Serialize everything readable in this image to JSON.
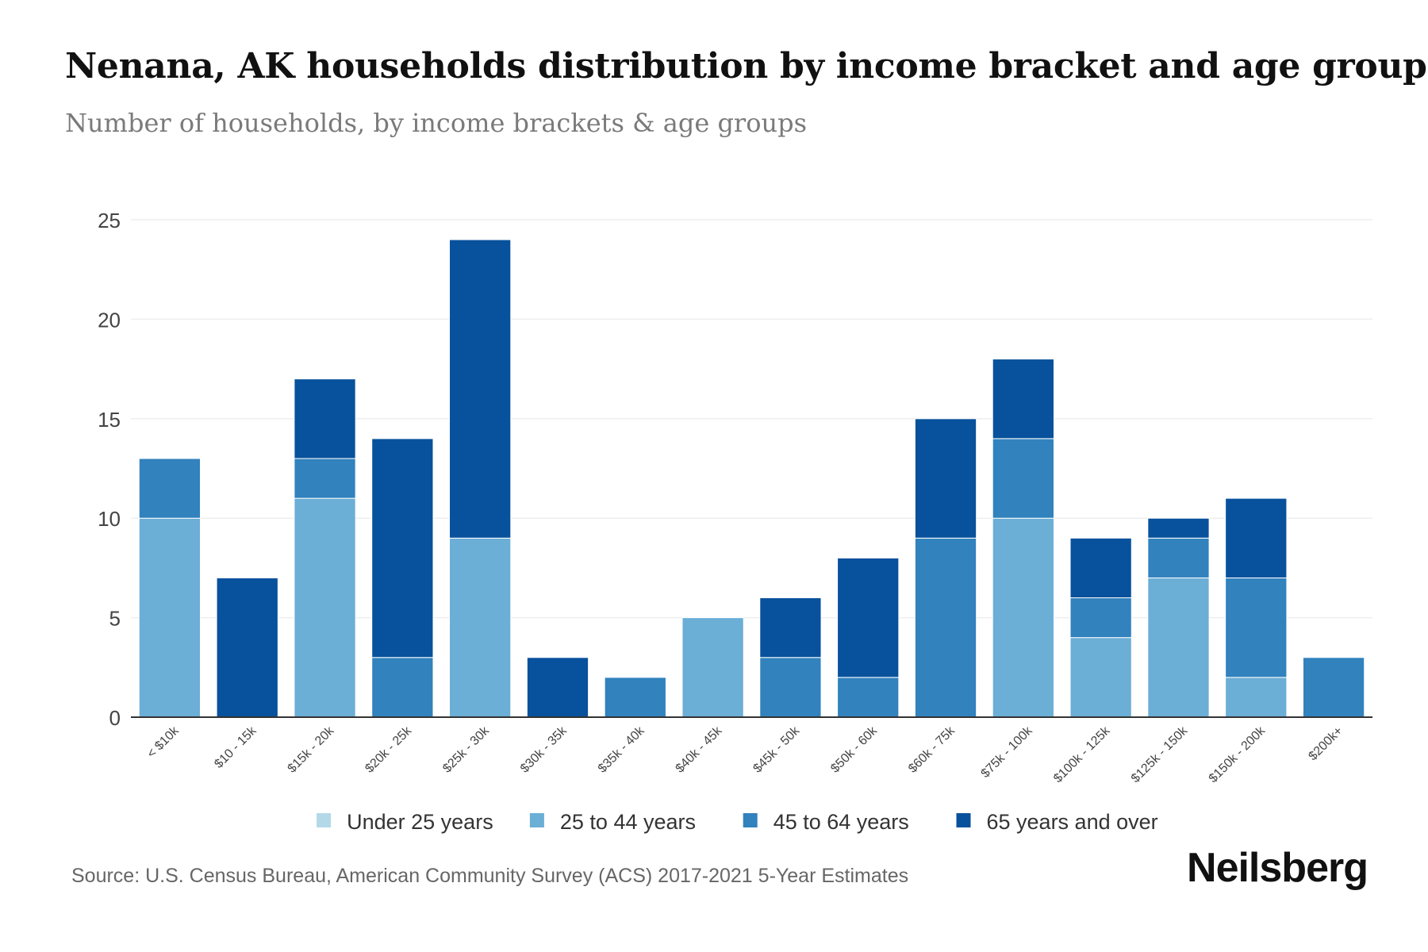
{
  "header": {
    "title": "Nenana, AK households distribution by income bracket and age group",
    "subtitle": "Number of households, by income brackets & age groups"
  },
  "footer": {
    "source": "Source: U.S. Census Bureau, American Community Survey (ACS) 2017-2021 5-Year Estimates",
    "brand": "Neilsberg"
  },
  "colors": {
    "under_25": "#b3d8e8",
    "25_to_44": "#6baed6",
    "45_to_64": "#3182bd",
    "65_plus": "#08519c",
    "grid": "#eeeeee",
    "axis": "#333333"
  },
  "chart_data": {
    "type": "bar",
    "stacked": true,
    "title": "Nenana, AK households distribution by income bracket and age group",
    "subtitle": "Number of households, by income brackets & age groups",
    "xlabel": "",
    "ylabel": "",
    "ylim": [
      0,
      25
    ],
    "yticks": [
      0,
      5,
      10,
      15,
      20,
      25
    ],
    "grid": true,
    "legend_position": "bottom",
    "categories": [
      "< $10k",
      "$10 - 15k",
      "$15k - 20k",
      "$20k - 25k",
      "$25k - 30k",
      "$30k - 35k",
      "$35k - 40k",
      "$40k - 45k",
      "$45k - 50k",
      "$50k - 60k",
      "$60k - 75k",
      "$75k - 100k",
      "$100k - 125k",
      "$125k - 150k",
      "$150k - 200k",
      "$200k+"
    ],
    "series": [
      {
        "name": "Under 25 years",
        "color": "#b3d8e8",
        "values": [
          0,
          0,
          0,
          0,
          0,
          0,
          0,
          0,
          0,
          0,
          0,
          0,
          0,
          0,
          0,
          0
        ]
      },
      {
        "name": "25 to 44 years",
        "color": "#6baed6",
        "values": [
          10,
          0,
          11,
          0,
          9,
          0,
          0,
          5,
          0,
          0,
          0,
          10,
          4,
          7,
          2,
          0
        ]
      },
      {
        "name": "45 to 64 years",
        "color": "#3182bd",
        "values": [
          3,
          0,
          2,
          3,
          0,
          0,
          2,
          0,
          3,
          2,
          9,
          4,
          2,
          2,
          5,
          3
        ]
      },
      {
        "name": "65 years and over",
        "color": "#08519c",
        "values": [
          0,
          7,
          4,
          11,
          15,
          3,
          0,
          0,
          3,
          6,
          6,
          4,
          3,
          1,
          4,
          0
        ]
      }
    ]
  }
}
